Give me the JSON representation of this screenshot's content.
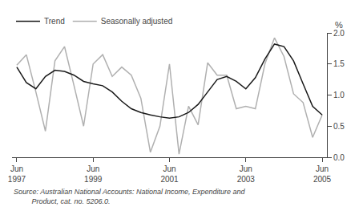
{
  "chart_data": {
    "type": "line",
    "categories": [
      "Jun\n1997",
      null,
      null,
      null,
      null,
      null,
      null,
      null,
      "Jun\n1999",
      null,
      null,
      null,
      null,
      null,
      null,
      null,
      "Jun\n2001",
      null,
      null,
      null,
      null,
      null,
      null,
      null,
      "Jun\n2003",
      null,
      null,
      null,
      null,
      null,
      null,
      null,
      "Jun\n2005"
    ],
    "series": [
      {
        "name": "Seasonally adjusted",
        "color": "#b0b0b0",
        "values": [
          1.48,
          1.65,
          1.05,
          0.42,
          1.55,
          1.78,
          1.15,
          0.5,
          1.5,
          1.65,
          1.3,
          1.45,
          1.32,
          0.95,
          0.08,
          0.5,
          1.5,
          0.05,
          0.82,
          0.52,
          1.52,
          1.32,
          1.32,
          0.78,
          0.82,
          0.78,
          1.5,
          1.92,
          1.62,
          1.02,
          0.88,
          0.32,
          0.68
        ]
      },
      {
        "name": "Trend",
        "color": "#1a1a1a",
        "values": [
          1.45,
          1.2,
          1.1,
          1.3,
          1.4,
          1.38,
          1.32,
          1.22,
          1.18,
          1.15,
          1.05,
          0.9,
          0.78,
          0.72,
          0.68,
          0.65,
          0.63,
          0.65,
          0.72,
          0.85,
          1.05,
          1.25,
          1.3,
          1.22,
          1.1,
          1.28,
          1.58,
          1.82,
          1.78,
          1.55,
          1.18,
          0.82,
          0.68
        ]
      }
    ],
    "y_label": "%",
    "ylim": [
      0.0,
      2.0
    ],
    "yticks": [
      {
        "value": 0.0,
        "label": "0.0"
      },
      0.5,
      {
        "value": 1.0,
        "label": "1.0"
      },
      1.5,
      {
        "value": 2.0,
        "label": "2.0"
      }
    ],
    "annotations": [
      "Source: Australian National Accounts: National Income, Expenditure and",
      "         Product, cat. no. 5206.0."
    ],
    "grid": false,
    "legend": "upper left"
  }
}
